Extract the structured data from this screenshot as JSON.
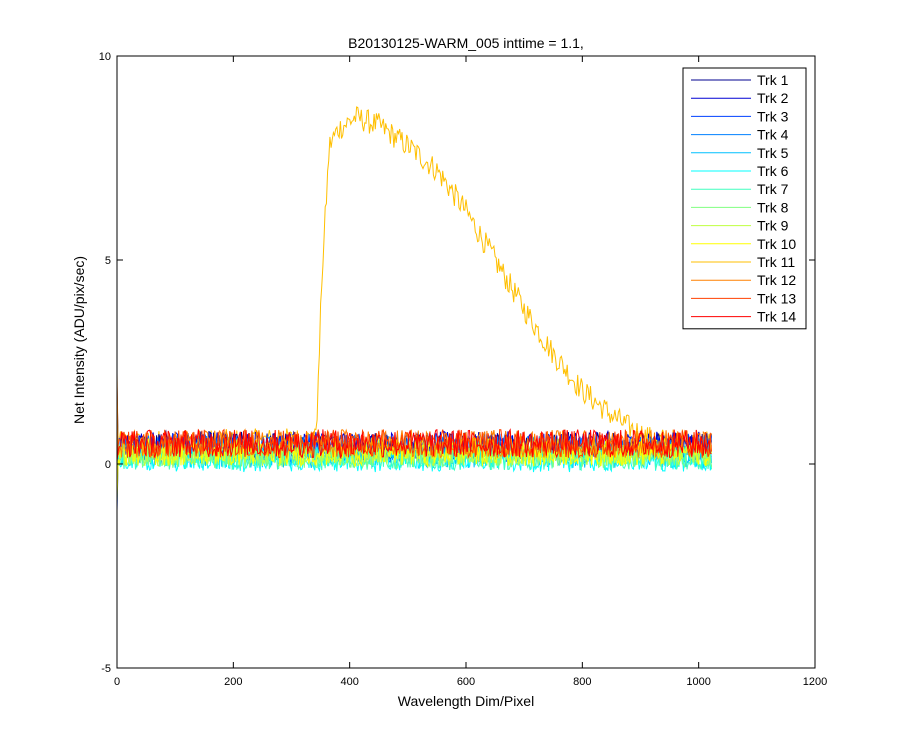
{
  "chart_data": {
    "type": "line",
    "title": "B20130125-WARM_005 inttime = 1.1,",
    "xlabel": "Wavelength Dim/Pixel",
    "ylabel": "Net Intensity (ADU/pix/sec)",
    "xlim": [
      0,
      1200
    ],
    "ylim": [
      -5,
      10
    ],
    "xticks": [
      0,
      200,
      400,
      600,
      800,
      1000,
      1200
    ],
    "yticks": [
      -5,
      0,
      5,
      10
    ],
    "xtick_labels": [
      "0",
      "200",
      "400",
      "600",
      "800",
      "1000",
      "1200"
    ],
    "ytick_labels": [
      "-5",
      "0",
      "5",
      "10"
    ],
    "legend_position": "top-right",
    "grid": false,
    "series": [
      {
        "name": "Trk 1",
        "color": "#00008f",
        "kind": "noise",
        "x_range": [
          0,
          1023
        ],
        "level": 0.45,
        "spread": 0.35
      },
      {
        "name": "Trk 2",
        "color": "#0000d4",
        "kind": "noise",
        "x_range": [
          0,
          1023
        ],
        "level": 0.45,
        "spread": 0.35
      },
      {
        "name": "Trk 3",
        "color": "#0040ff",
        "kind": "noise",
        "x_range": [
          0,
          1023
        ],
        "level": 0.4,
        "spread": 0.35
      },
      {
        "name": "Trk 4",
        "color": "#0080ff",
        "kind": "noise",
        "x_range": [
          0,
          1023
        ],
        "level": 0.35,
        "spread": 0.35
      },
      {
        "name": "Trk 5",
        "color": "#00c0ff",
        "kind": "noise",
        "x_range": [
          0,
          1023
        ],
        "level": 0.2,
        "spread": 0.3
      },
      {
        "name": "Trk 6",
        "color": "#00ffff",
        "kind": "noise",
        "x_range": [
          0,
          1023
        ],
        "level": 0.1,
        "spread": 0.3
      },
      {
        "name": "Trk 7",
        "color": "#40ffbf",
        "kind": "noise",
        "x_range": [
          0,
          1023
        ],
        "level": 0.15,
        "spread": 0.3
      },
      {
        "name": "Trk 8",
        "color": "#80ff80",
        "kind": "noise",
        "x_range": [
          0,
          1023
        ],
        "level": 0.2,
        "spread": 0.3
      },
      {
        "name": "Trk 9",
        "color": "#bfff40",
        "kind": "noise",
        "x_range": [
          0,
          1023
        ],
        "level": 0.25,
        "spread": 0.3
      },
      {
        "name": "Trk 10",
        "color": "#ffff00",
        "kind": "noise",
        "x_range": [
          0,
          1023
        ],
        "level": 0.3,
        "spread": 0.35
      },
      {
        "name": "Trk 11",
        "color": "#ffbf00",
        "kind": "profile",
        "x_range": [
          0,
          1023
        ],
        "profile": [
          [
            0,
            0.5
          ],
          [
            340,
            0.6
          ],
          [
            345,
            1.5
          ],
          [
            352,
            4.5
          ],
          [
            365,
            7.8
          ],
          [
            380,
            8.2
          ],
          [
            410,
            8.5
          ],
          [
            450,
            8.3
          ],
          [
            500,
            7.8
          ],
          [
            550,
            7.2
          ],
          [
            600,
            6.2
          ],
          [
            650,
            5.0
          ],
          [
            700,
            3.8
          ],
          [
            750,
            2.7
          ],
          [
            800,
            1.8
          ],
          [
            850,
            1.2
          ],
          [
            880,
            0.9
          ],
          [
            920,
            0.6
          ],
          [
            1023,
            0.5
          ]
        ],
        "spread": 0.3
      },
      {
        "name": "Trk 12",
        "color": "#ff8000",
        "kind": "noise",
        "x_range": [
          0,
          1023
        ],
        "level": 0.5,
        "spread": 0.35
      },
      {
        "name": "Trk 13",
        "color": "#ff4000",
        "kind": "noise",
        "x_range": [
          0,
          1023
        ],
        "level": 0.5,
        "spread": 0.35
      },
      {
        "name": "Trk 14",
        "color": "#ff0000",
        "kind": "noise",
        "x_range": [
          0,
          1023
        ],
        "level": 0.5,
        "spread": 0.35
      }
    ]
  }
}
